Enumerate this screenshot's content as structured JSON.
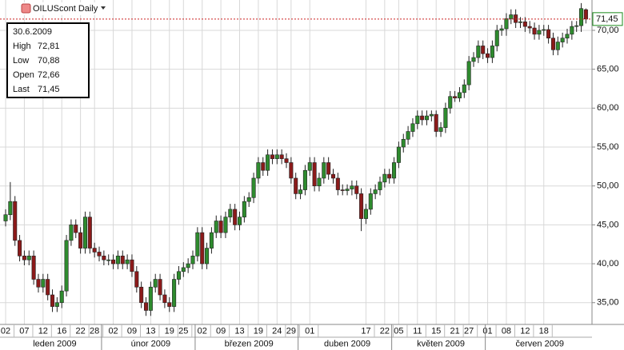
{
  "chart_data": {
    "type": "candlestick",
    "title": "OILUScont Daily",
    "info": {
      "date": "30.6.2009",
      "rows": [
        [
          "High",
          "72,81"
        ],
        [
          "Low",
          "70,88"
        ],
        [
          "Open",
          "72,66"
        ],
        [
          "Last",
          "71,45"
        ]
      ]
    },
    "last_price": {
      "value": 71.45,
      "label": "71,45"
    },
    "colors": {
      "up": "#2e8b2e",
      "down": "#8b1a1a",
      "last": "#1a8a1a",
      "last_line": "#cc2222"
    },
    "grid": true,
    "ylim": [
      32.2,
      73.9
    ],
    "yticks": [
      {
        "value": 35,
        "label": "35,00"
      },
      {
        "value": 40,
        "label": "40,00"
      },
      {
        "value": 45,
        "label": "45,00"
      },
      {
        "value": 50,
        "label": "50,00"
      },
      {
        "value": 55,
        "label": "55,00"
      },
      {
        "value": 60,
        "label": "60,00"
      },
      {
        "value": 65,
        "label": "65,00"
      },
      {
        "value": 70,
        "label": "70,00"
      }
    ],
    "xlim": [
      -1.2,
      125.3
    ],
    "xticks": [
      {
        "value": 0,
        "label": "02"
      },
      {
        "value": 4,
        "label": "07"
      },
      {
        "value": 8,
        "label": "12"
      },
      {
        "value": 12,
        "label": "16"
      },
      {
        "value": 16,
        "label": "22"
      },
      {
        "value": 19,
        "label": "28"
      },
      {
        "value": 23,
        "label": "02"
      },
      {
        "value": 27,
        "label": "09"
      },
      {
        "value": 31,
        "label": "13"
      },
      {
        "value": 35,
        "label": "19"
      },
      {
        "value": 38,
        "label": "25"
      },
      {
        "value": 42,
        "label": "02"
      },
      {
        "value": 46,
        "label": "09"
      },
      {
        "value": 50,
        "label": "13"
      },
      {
        "value": 54,
        "label": "19"
      },
      {
        "value": 58,
        "label": "24"
      },
      {
        "value": 61,
        "label": "29"
      },
      {
        "value": 65,
        "label": "01"
      },
      {
        "value": 77,
        "label": "17"
      },
      {
        "value": 81,
        "label": "22"
      },
      {
        "value": 84,
        "label": "05"
      },
      {
        "value": 88,
        "label": "11"
      },
      {
        "value": 92,
        "label": "15"
      },
      {
        "value": 96,
        "label": "21"
      },
      {
        "value": 99,
        "label": "27"
      },
      {
        "value": 103,
        "label": "01"
      },
      {
        "value": 107,
        "label": "08"
      },
      {
        "value": 111,
        "label": "12"
      },
      {
        "value": 115,
        "label": "18"
      }
    ],
    "months": [
      {
        "value": 0,
        "label": "leden 2009"
      },
      {
        "value": 21,
        "label": "únor 2009"
      },
      {
        "value": 41,
        "label": "březen 2009"
      },
      {
        "value": 63,
        "label": "duben 2009"
      },
      {
        "value": 83,
        "label": "květen 2009"
      },
      {
        "value": 103,
        "label": "červen 2009"
      }
    ],
    "ohlc": [
      [
        45.5,
        47,
        44.8,
        46.3
      ],
      [
        46.3,
        50.5,
        45.6,
        48
      ],
      [
        48,
        48.7,
        42.3,
        43
      ],
      [
        43,
        43.7,
        40.3,
        41
      ],
      [
        41,
        41.7,
        39.8,
        40.5
      ],
      [
        40.5,
        41.7,
        39.8,
        41
      ],
      [
        41,
        41.7,
        37.3,
        38
      ],
      [
        38,
        38.7,
        36.3,
        37
      ],
      [
        37,
        38.7,
        36.3,
        38
      ],
      [
        38,
        38.7,
        35.3,
        36
      ],
      [
        36,
        36.7,
        33.8,
        34.5
      ],
      [
        34.5,
        35.7,
        33.8,
        35
      ],
      [
        35,
        37.2,
        34.3,
        36.5
      ],
      [
        36.5,
        43.7,
        35.8,
        43
      ],
      [
        43,
        45.7,
        42.3,
        45
      ],
      [
        45,
        45.7,
        43.3,
        44
      ],
      [
        44,
        44.7,
        41.3,
        42
      ],
      [
        42,
        46.7,
        41.3,
        46
      ],
      [
        46,
        46.7,
        41.3,
        42
      ],
      [
        42,
        42.7,
        40.8,
        41.5
      ],
      [
        41.5,
        42.2,
        40.3,
        41
      ],
      [
        41,
        41.7,
        39.8,
        40.5
      ],
      [
        40.5,
        41.2,
        39.8,
        40.5
      ],
      [
        40.5,
        41.2,
        39.3,
        40
      ],
      [
        40,
        41.7,
        39.3,
        41
      ],
      [
        41,
        41.7,
        39.3,
        40
      ],
      [
        40,
        41.2,
        39.3,
        40.5
      ],
      [
        40.5,
        41.2,
        38.3,
        39
      ],
      [
        39,
        39.7,
        36.3,
        37
      ],
      [
        37,
        37.7,
        34.3,
        35
      ],
      [
        35,
        35.7,
        33.3,
        34
      ],
      [
        34,
        37.7,
        33.3,
        37
      ],
      [
        37,
        38.7,
        36.3,
        38
      ],
      [
        38,
        38.7,
        35.3,
        36
      ],
      [
        36,
        36.7,
        34.3,
        35
      ],
      [
        35,
        35.7,
        33.8,
        34.5
      ],
      [
        34.5,
        38.7,
        33.8,
        38
      ],
      [
        38,
        39.7,
        37.3,
        39
      ],
      [
        39,
        40.2,
        38.3,
        39.5
      ],
      [
        39.5,
        40.7,
        38.8,
        40
      ],
      [
        40,
        41.7,
        39.3,
        41
      ],
      [
        41,
        44.7,
        40.3,
        44
      ],
      [
        44,
        44.7,
        39.3,
        40
      ],
      [
        40,
        42.7,
        39.3,
        42
      ],
      [
        42,
        44.7,
        41.3,
        44
      ],
      [
        44,
        46.2,
        43.3,
        45.5
      ],
      [
        45.5,
        46.2,
        43.3,
        44
      ],
      [
        44,
        46.7,
        43.3,
        46
      ],
      [
        46,
        47.7,
        45.3,
        47
      ],
      [
        47,
        47.7,
        44.3,
        45
      ],
      [
        45,
        46.7,
        44.3,
        46
      ],
      [
        46,
        48.7,
        45.3,
        48
      ],
      [
        48,
        49.2,
        47.3,
        48.5
      ],
      [
        48.5,
        51.7,
        47.8,
        51
      ],
      [
        51,
        53.7,
        50.3,
        53
      ],
      [
        53,
        53.7,
        51.3,
        52
      ],
      [
        52,
        54.7,
        51.3,
        54
      ],
      [
        54,
        54.7,
        52.8,
        53.5
      ],
      [
        53.5,
        54.7,
        52.8,
        54
      ],
      [
        54,
        54.7,
        52.8,
        53.5
      ],
      [
        53.5,
        54.2,
        52.3,
        53
      ],
      [
        53,
        53.7,
        50.3,
        51
      ],
      [
        51,
        51.7,
        48.3,
        49
      ],
      [
        49,
        50.2,
        48.3,
        49.5
      ],
      [
        49.5,
        52.7,
        48.8,
        52
      ],
      [
        52,
        53.7,
        51.3,
        53
      ],
      [
        53,
        53.7,
        49.3,
        50
      ],
      [
        50,
        51.7,
        49.3,
        51
      ],
      [
        51,
        53.7,
        50.3,
        53
      ],
      [
        53,
        53.7,
        50.8,
        51.5
      ],
      [
        51.5,
        52.2,
        50.3,
        51
      ],
      [
        51,
        51.7,
        48.8,
        49.5
      ],
      [
        49.5,
        50.2,
        48.8,
        49.4
      ],
      [
        49.4,
        50.2,
        48.8,
        49.6
      ],
      [
        49.6,
        50.7,
        48.8,
        50
      ],
      [
        50,
        50.7,
        48.3,
        49
      ],
      [
        49,
        49.7,
        44.2,
        45.8
      ],
      [
        45.8,
        47.7,
        45.1,
        47
      ],
      [
        47,
        49.7,
        46.3,
        49
      ],
      [
        49,
        50.2,
        48.3,
        49.5
      ],
      [
        49.5,
        51.2,
        48.8,
        50.5
      ],
      [
        50.5,
        52.2,
        49.8,
        51.5
      ],
      [
        51.5,
        52.2,
        50.3,
        51
      ],
      [
        51,
        53.7,
        50.3,
        53
      ],
      [
        53,
        55.7,
        52.3,
        55
      ],
      [
        55,
        56.7,
        54.3,
        56
      ],
      [
        56,
        57.7,
        55.3,
        57
      ],
      [
        57,
        58.7,
        56.3,
        58
      ],
      [
        58,
        59.7,
        57.3,
        59
      ],
      [
        59,
        59.7,
        57.8,
        58.5
      ],
      [
        58.5,
        59.7,
        57.8,
        59
      ],
      [
        59,
        59.7,
        58.3,
        59.2
      ],
      [
        59.2,
        59.7,
        56.3,
        57
      ],
      [
        57,
        58.2,
        56.3,
        57.5
      ],
      [
        57.5,
        60.7,
        56.8,
        60
      ],
      [
        60,
        62.2,
        59.3,
        61.5
      ],
      [
        61.5,
        62.2,
        60.8,
        61.3
      ],
      [
        61.3,
        62.7,
        60.8,
        62
      ],
      [
        62,
        63.7,
        61.3,
        63
      ],
      [
        63,
        66.7,
        62.3,
        66
      ],
      [
        66,
        67.2,
        65.3,
        66.5
      ],
      [
        66.5,
        68.7,
        65.8,
        68
      ],
      [
        68,
        68.7,
        66.3,
        67
      ],
      [
        67,
        67.7,
        65.8,
        66.5
      ],
      [
        66.5,
        68.7,
        65.8,
        68
      ],
      [
        68,
        70.7,
        67.3,
        70
      ],
      [
        70,
        70.7,
        69.3,
        70.2
      ],
      [
        70.2,
        72.2,
        69.3,
        71.5
      ],
      [
        71.5,
        72.7,
        70.8,
        72
      ],
      [
        72,
        72.7,
        70.3,
        71
      ],
      [
        71,
        71.7,
        70.3,
        71.1
      ],
      [
        71.1,
        71.7,
        69.8,
        70.5
      ],
      [
        70.5,
        71.2,
        69.6,
        70.3
      ],
      [
        70.3,
        71,
        68.8,
        69.5
      ],
      [
        69.5,
        70.7,
        68.8,
        70
      ],
      [
        70,
        70.7,
        69.3,
        70.1
      ],
      [
        70.1,
        70.7,
        68.3,
        69
      ],
      [
        69,
        69.7,
        66.8,
        67.5
      ],
      [
        67.5,
        69.2,
        66.8,
        68.5
      ],
      [
        68.5,
        69.7,
        67.8,
        69
      ],
      [
        69,
        70.2,
        68.3,
        69.5
      ],
      [
        69.5,
        71.2,
        68.8,
        70.5
      ],
      [
        70.5,
        71.2,
        69.8,
        70.6
      ],
      [
        70.6,
        73.5,
        69.8,
        72.8
      ],
      [
        72.66,
        72.81,
        70.88,
        71.45
      ]
    ]
  }
}
